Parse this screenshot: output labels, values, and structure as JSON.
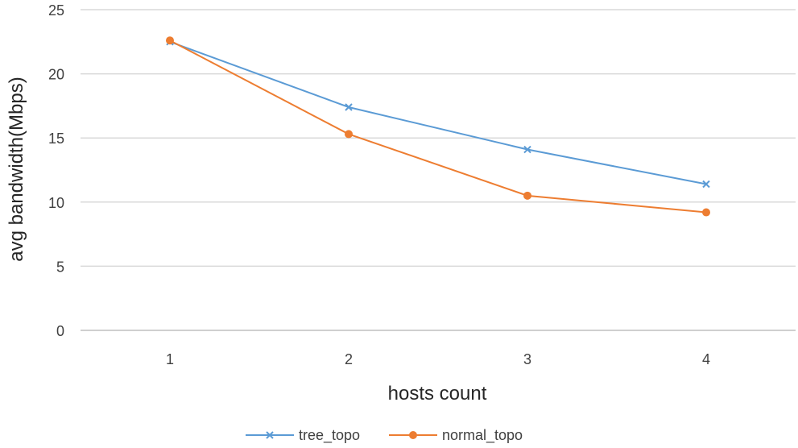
{
  "chart_data": {
    "type": "line",
    "title": "",
    "xlabel": "hosts count",
    "ylabel": "avg bandwidth(Mbps)",
    "categories": [
      "1",
      "2",
      "3",
      "4"
    ],
    "ylim": [
      0,
      25
    ],
    "yticks": [
      "0",
      "5",
      "10",
      "15",
      "20",
      "25"
    ],
    "grid": true,
    "legend_position": "bottom",
    "series": [
      {
        "name": "tree_topo",
        "values": [
          22.5,
          17.4,
          14.1,
          11.4
        ],
        "color": "#5B9BD5",
        "marker": "x"
      },
      {
        "name": "normal_topo",
        "values": [
          22.6,
          15.3,
          10.5,
          9.2
        ],
        "color": "#ED7D31",
        "marker": "circle"
      }
    ]
  }
}
